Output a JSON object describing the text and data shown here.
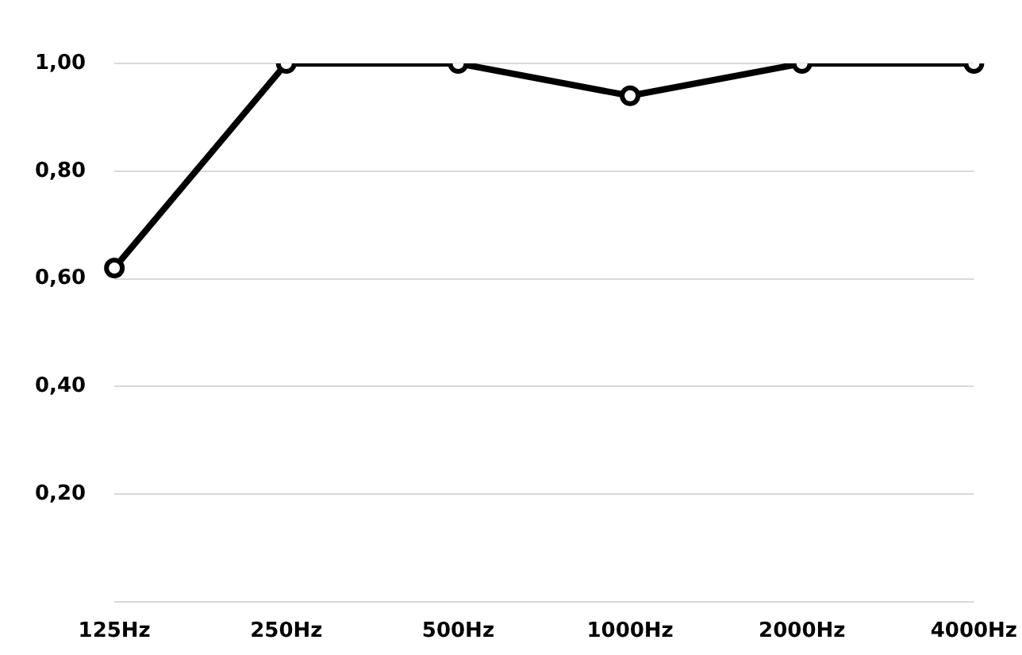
{
  "chart_data": {
    "type": "line",
    "categories": [
      "125Hz",
      "250Hz",
      "500Hz",
      "1000Hz",
      "2000Hz",
      "4000Hz"
    ],
    "series": [
      {
        "color": "#000000",
        "values": [
          0.62,
          1.0,
          1.0,
          0.94,
          1.0,
          1.0
        ]
      }
    ],
    "ylim": [
      0,
      1
    ],
    "yticks": [
      {
        "value": 0,
        "label": null
      },
      {
        "value": 0.2,
        "label": "0,20"
      },
      {
        "value": 0.4,
        "label": "0,40"
      },
      {
        "value": 0.6,
        "label": "0,60"
      },
      {
        "value": 0.8,
        "label": "0,80"
      },
      {
        "value": 1,
        "label": "1,00"
      }
    ],
    "grid": "y",
    "marker": "circle",
    "line_style": "solid"
  }
}
